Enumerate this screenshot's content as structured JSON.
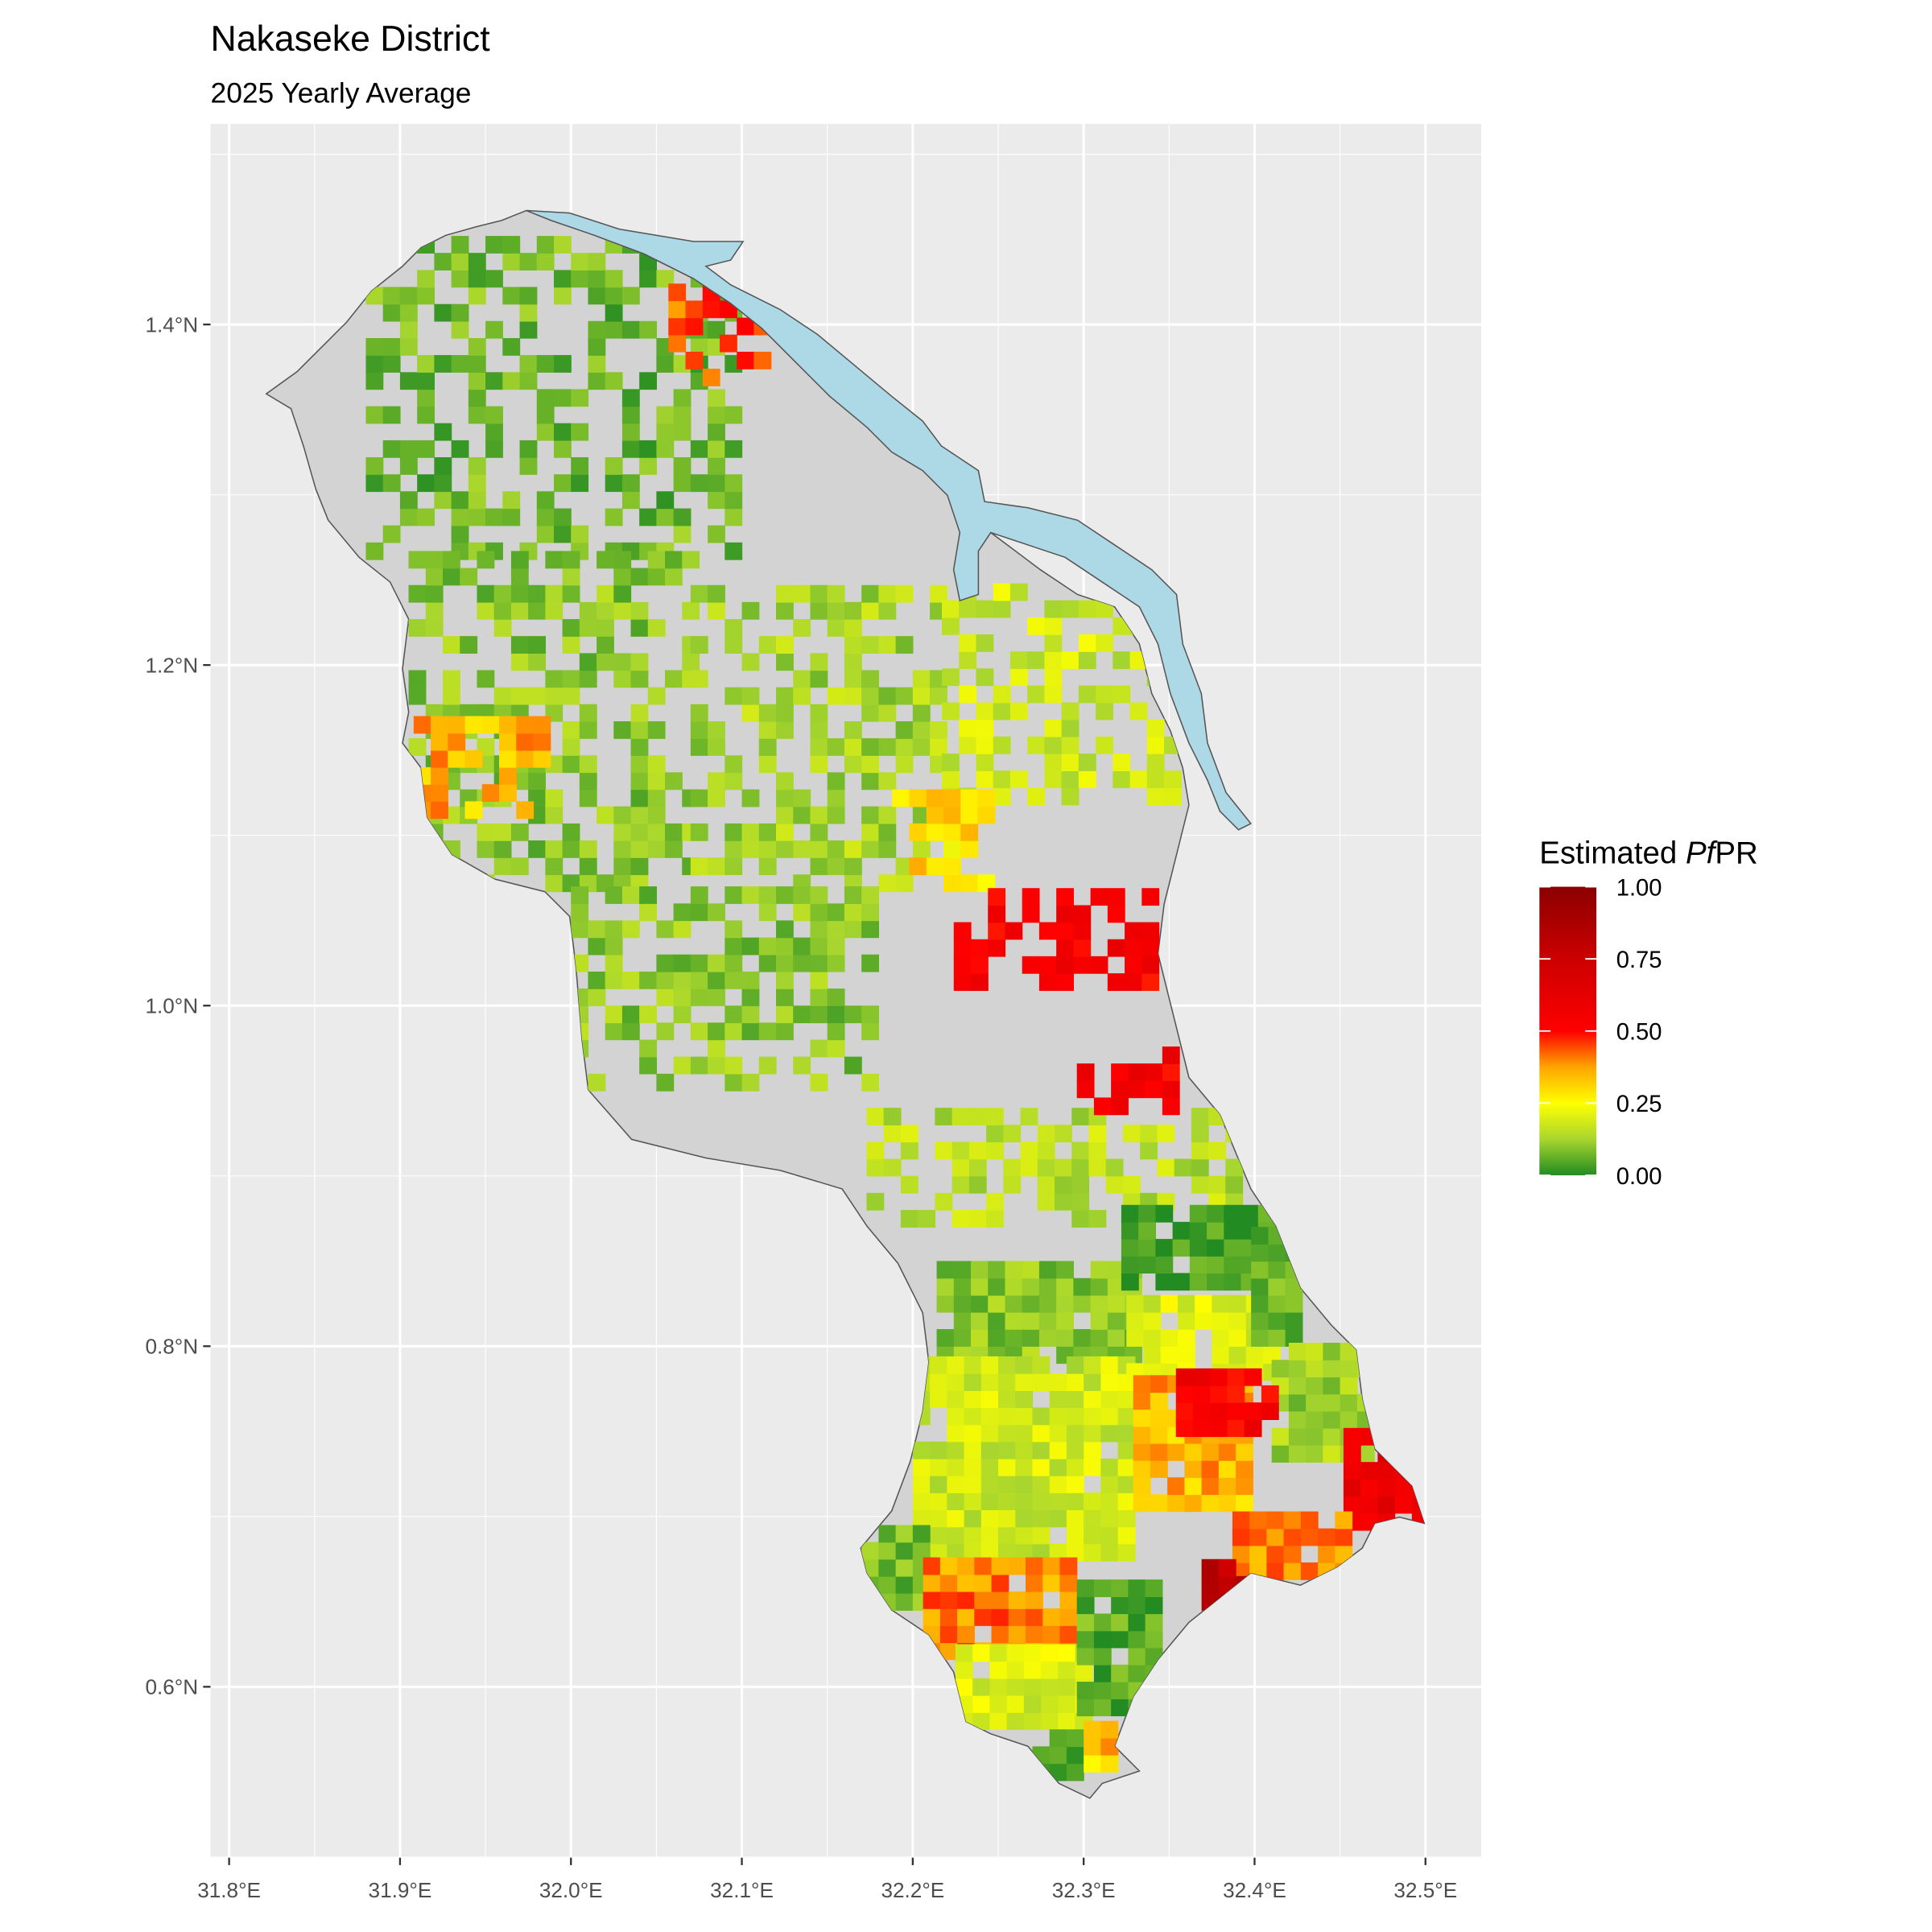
{
  "chart_data": {
    "type": "heatmap",
    "title": "Nakaseke District",
    "subtitle": "2025 Yearly Average",
    "xlabel": "",
    "ylabel": "",
    "x_ticks": [
      "31.8°E",
      "31.9°E",
      "32.0°E",
      "32.1°E",
      "32.2°E",
      "32.3°E",
      "32.4°E",
      "32.5°E"
    ],
    "x_tick_values": [
      31.8,
      31.9,
      32.0,
      32.1,
      32.2,
      32.3,
      32.4,
      32.5
    ],
    "y_ticks": [
      "0.6°N",
      "0.8°N",
      "1.0°N",
      "1.2°N",
      "1.4°N"
    ],
    "y_tick_values": [
      0.6,
      0.8,
      1.0,
      1.2,
      1.4
    ],
    "xlim": [
      31.79,
      32.53
    ],
    "ylim": [
      0.51,
      1.52
    ],
    "grid": true,
    "legend": {
      "title_prefix": "Estimated ",
      "title_italic": "Pf",
      "title_suffix": "PR",
      "placement": "right",
      "labels": [
        "1.00",
        "0.75",
        "0.50",
        "0.25",
        "0.00"
      ],
      "range": [
        0,
        1
      ],
      "colors": [
        {
          "v": 0.0,
          "c": "#228b22"
        },
        {
          "v": 0.125,
          "c": "#a8d62e"
        },
        {
          "v": 0.25,
          "c": "#ffff00"
        },
        {
          "v": 0.375,
          "c": "#ffa500"
        },
        {
          "v": 0.5,
          "c": "#ff0000"
        },
        {
          "v": 0.75,
          "c": "#cc0000"
        },
        {
          "v": 1.0,
          "c": "#8b0000"
        }
      ]
    },
    "district_fill": "#d3d3d3",
    "water_fill": "#add8e6",
    "zones": [
      {
        "lon": [
          31.88,
          32.1
        ],
        "lat": [
          1.262,
          1.452
        ],
        "value": 0.07
      },
      {
        "lon": [
          31.905,
          32.072
        ],
        "lat": [
          1.067,
          1.263
        ],
        "value": 0.1
      },
      {
        "lon": [
          32.07,
          32.216
        ],
        "lat": [
          1.067,
          1.24
        ],
        "value": 0.13
      },
      {
        "lon": [
          32.217,
          32.35
        ],
        "lat": [
          1.118,
          1.24
        ],
        "value": 0.18
      },
      {
        "lon": [
          32.0,
          32.173
        ],
        "lat": [
          0.95,
          1.067
        ],
        "value": 0.1
      },
      {
        "lon": [
          32.173,
          32.39
        ],
        "lat": [
          0.87,
          0.936
        ],
        "value": 0.15
      },
      {
        "lon": [
          32.188,
          32.245
        ],
        "lat": [
          1.067,
          1.118
        ],
        "value": 0.3
      },
      {
        "lon": [
          32.224,
          32.34
        ],
        "lat": [
          1.009,
          1.067
        ],
        "value": 0.55
      },
      {
        "lon": [
          32.296,
          32.347
        ],
        "lat": [
          0.936,
          0.972
        ],
        "value": 0.55
      },
      {
        "lon": [
          31.908,
          31.988
        ],
        "lat": [
          1.11,
          1.162
        ],
        "value": 0.35
      },
      {
        "lon": [
          32.057,
          32.115
        ],
        "lat": [
          1.354,
          1.42
        ],
        "value": 0.45
      },
      {
        "lon": [
          32.214,
          32.325
        ],
        "lat": [
          0.79,
          0.85
        ],
        "value": 0.1
      },
      {
        "lon": [
          32.2,
          32.325
        ],
        "lat": [
          0.674,
          0.79
        ],
        "value": 0.18
      },
      {
        "lon": [
          32.325,
          32.42
        ],
        "lat": [
          0.78,
          0.827
        ],
        "value": 0.2
      },
      {
        "lon": [
          32.322,
          32.416
        ],
        "lat": [
          0.833,
          0.876
        ],
        "value": 0.02
      },
      {
        "lon": [
          32.398,
          32.423
        ],
        "lat": [
          0.8,
          0.87
        ],
        "value": 0.08
      },
      {
        "lon": [
          32.41,
          32.463
        ],
        "lat": [
          0.732,
          0.798
        ],
        "value": 0.12
      },
      {
        "lon": [
          32.329,
          32.39
        ],
        "lat": [
          0.703,
          0.776
        ],
        "value": 0.35
      },
      {
        "lon": [
          32.354,
          32.412
        ],
        "lat": [
          0.747,
          0.785
        ],
        "value": 0.55
      },
      {
        "lon": [
          32.452,
          32.496
        ],
        "lat": [
          0.692,
          0.743
        ],
        "value": 0.6
      },
      {
        "lon": [
          32.387,
          32.456
        ],
        "lat": [
          0.663,
          0.7
        ],
        "value": 0.4
      },
      {
        "lon": [
          32.369,
          32.39
        ],
        "lat": [
          0.645,
          0.67
        ],
        "value": 0.8
      },
      {
        "lon": [
          32.17,
          32.21
        ],
        "lat": [
          0.645,
          0.69
        ],
        "value": 0.08
      },
      {
        "lon": [
          32.206,
          32.296
        ],
        "lat": [
          0.616,
          0.67
        ],
        "value": 0.4
      },
      {
        "lon": [
          32.225,
          32.296
        ],
        "lat": [
          0.575,
          0.62
        ],
        "value": 0.2
      },
      {
        "lon": [
          32.296,
          32.343
        ],
        "lat": [
          0.583,
          0.66
        ],
        "value": 0.05
      },
      {
        "lon": [
          32.27,
          32.3
        ],
        "lat": [
          0.545,
          0.575
        ],
        "value": 0.05
      },
      {
        "lon": [
          32.3,
          32.32
        ],
        "lat": [
          0.55,
          0.575
        ],
        "value": 0.33
      }
    ]
  }
}
